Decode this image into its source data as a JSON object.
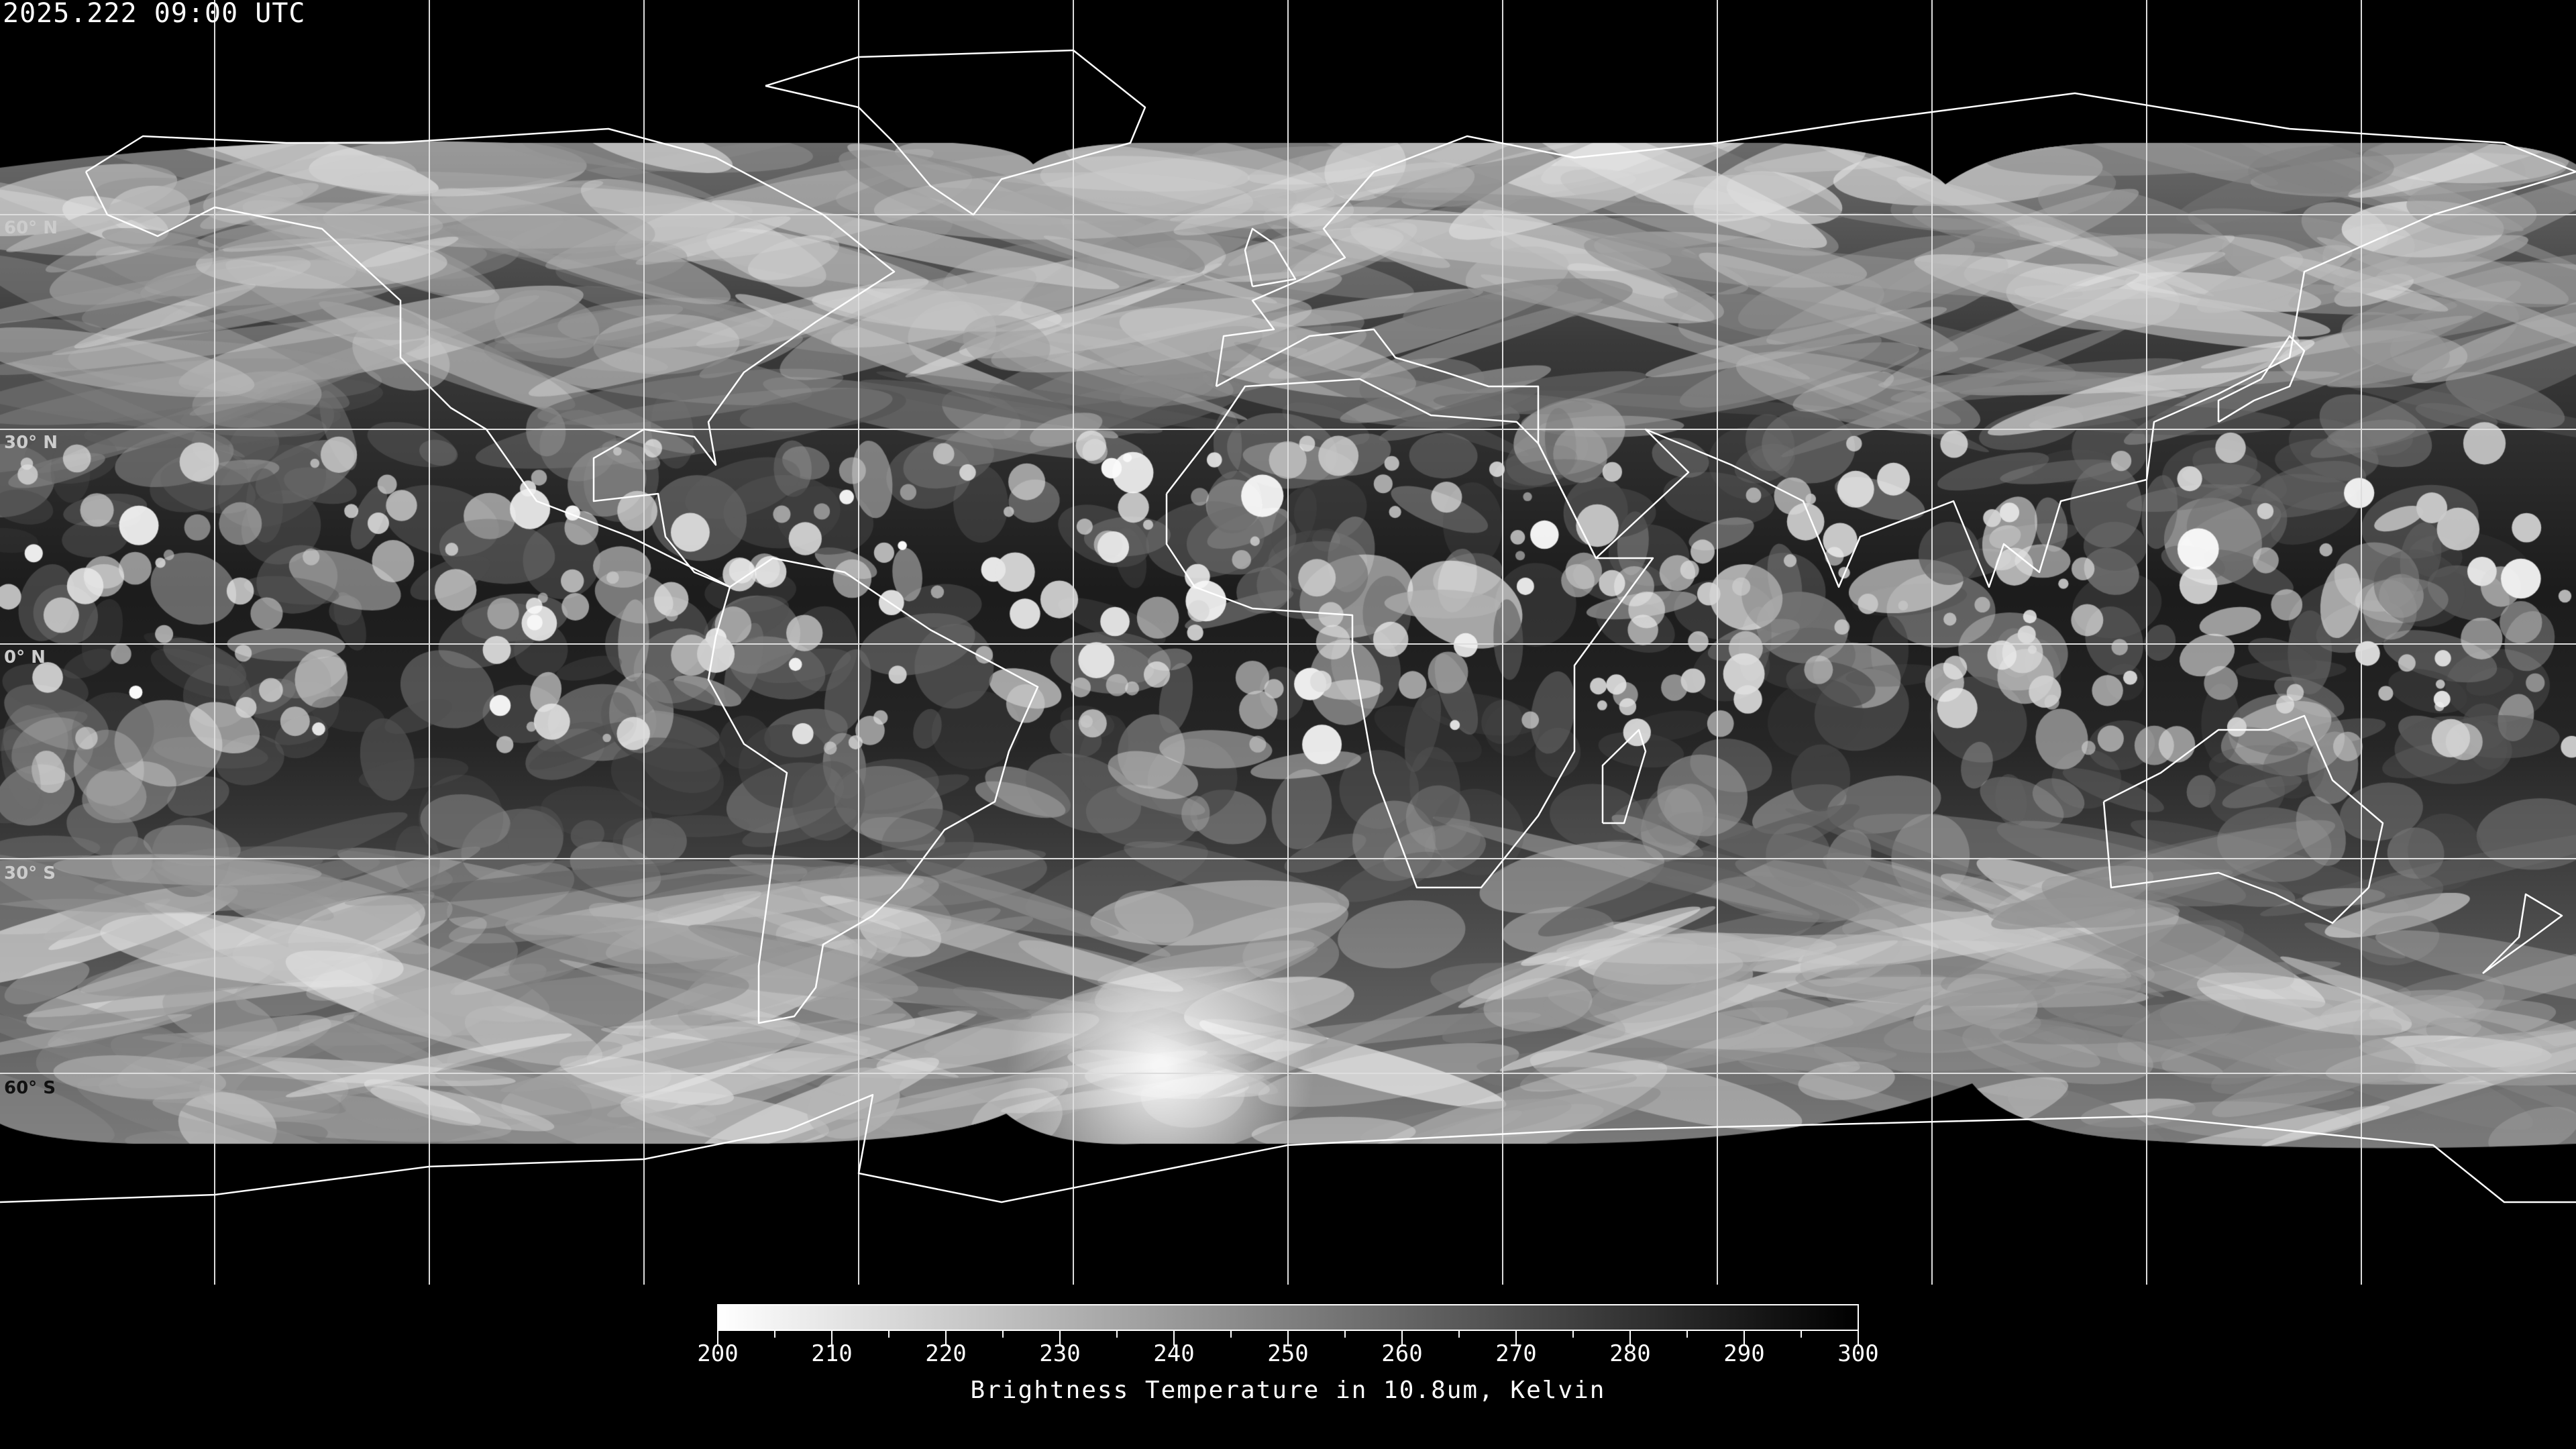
{
  "timestamp": "2025.222 09:00 UTC",
  "map": {
    "projection": "equirectangular",
    "latitude_labels": [
      "60° N",
      "30° N",
      "0° N",
      "30° S",
      "60° S"
    ],
    "graticule_spacing_degrees": 30,
    "coastline_color": "#ffffff",
    "gridline_color": "#ffffff",
    "no_data_color": "#000000"
  },
  "colorbar": {
    "min": 200,
    "max": 300,
    "tick_labels": [
      "200",
      "210",
      "220",
      "230",
      "240",
      "250",
      "260",
      "270",
      "280",
      "290",
      "300"
    ],
    "color_low": "#ffffff",
    "color_high": "#000000",
    "title": "Brightness Temperature in 10.8um, Kelvin"
  }
}
